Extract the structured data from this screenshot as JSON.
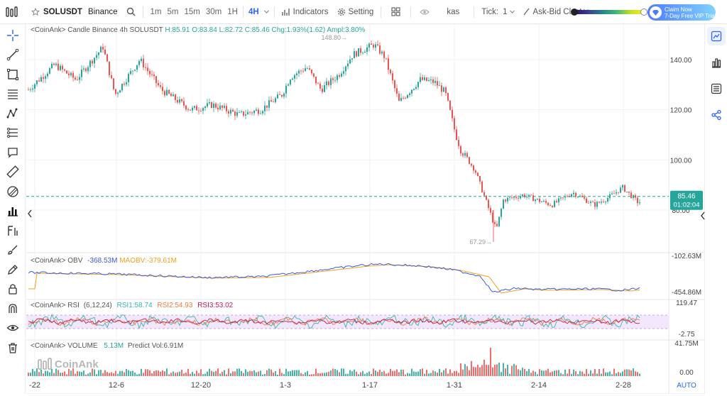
{
  "topbar": {
    "symbol": "SOLUSDT",
    "exchange": "Binance",
    "timeframes": [
      "1m",
      "5m",
      "15m",
      "30m",
      "1H",
      "4H"
    ],
    "active_timeframe": "4H",
    "indicators_label": "Indicators",
    "setting_label": "Setting",
    "kas_label": "kas",
    "tick_label": "Tick:",
    "tick_value": "1",
    "cluster_label": "Ask-Bid Cluster",
    "cta_line1": "Claim Now",
    "cta_line2": "7-Day Free VIP Trial"
  },
  "main_pane": {
    "prefix": "<CoinAnk>",
    "title": "Candle  Binance 4h SOLUSDT",
    "h": "H:85.91",
    "o": "O:83.84",
    "l": "L:82.72",
    "c": "C:85.46",
    "chg": "Chg:1.93%(1.62)",
    "ampl": "Ampl:3.80%",
    "high_marker": "148.80",
    "low_marker": "67.29",
    "y_ticks": [
      "140.00",
      "120.00",
      "100.00",
      "80.00"
    ],
    "last_price": "85.46",
    "countdown": "01:02:04"
  },
  "obv_pane": {
    "prefix": "<CoinAnk>",
    "title": "OBV",
    "obv_value": "-368.53M",
    "maobv_value": "MAOBV:-379.61M",
    "y_top": "-102.63M",
    "y_bottom": "-454.86M"
  },
  "rsi_pane": {
    "prefix": "<CoinAnk>",
    "title": "RSI",
    "params": "(6,12,24)",
    "rsi1": "RSI1:58.74",
    "rsi2": "RSI2:54.93",
    "rsi3": "RSI3:53.02",
    "y_top": "119.47",
    "y_bottom": "-2.75"
  },
  "vol_pane": {
    "prefix": "<CoinAnk>",
    "title": "VOLUME",
    "vol": "5.13M",
    "predict": "Predict Vol:6.91M",
    "y_top": "41.75M",
    "y_bottom": "0.00",
    "watermark": "CoinAnk"
  },
  "x_axis": [
    "-22",
    "12-6",
    "12-20",
    "1-3",
    "1-17",
    "1-31",
    "2-14",
    "2-28"
  ],
  "auto_label": "AUTO",
  "colors": {
    "up": "#26a69a",
    "down": "#ef5350",
    "accent": "#2b63ff",
    "last_price_bg": "#26a69a",
    "obv": "#3b5bdb",
    "maobv": "#f0a020",
    "rsi1": "#33b5b5",
    "rsi2": "#f07a3c",
    "rsi3": "#c2185b"
  },
  "left_tools": [
    "crosshair-icon",
    "trend-line-icon",
    "rectangle-icon",
    "parallel-lines-icon",
    "pattern-icon",
    "fib-icon",
    "note-icon",
    "ruler-icon",
    "eraser-icon",
    "bar-chart-icon",
    "pitchfork-icon",
    "brush-icon",
    "pencil-icon",
    "lock-icon",
    "magnet-icon",
    "eye-icon",
    "trash-icon"
  ],
  "right_tools": [
    "line-chart-icon",
    "stats-icon",
    "list-icon",
    "share-icon"
  ]
}
